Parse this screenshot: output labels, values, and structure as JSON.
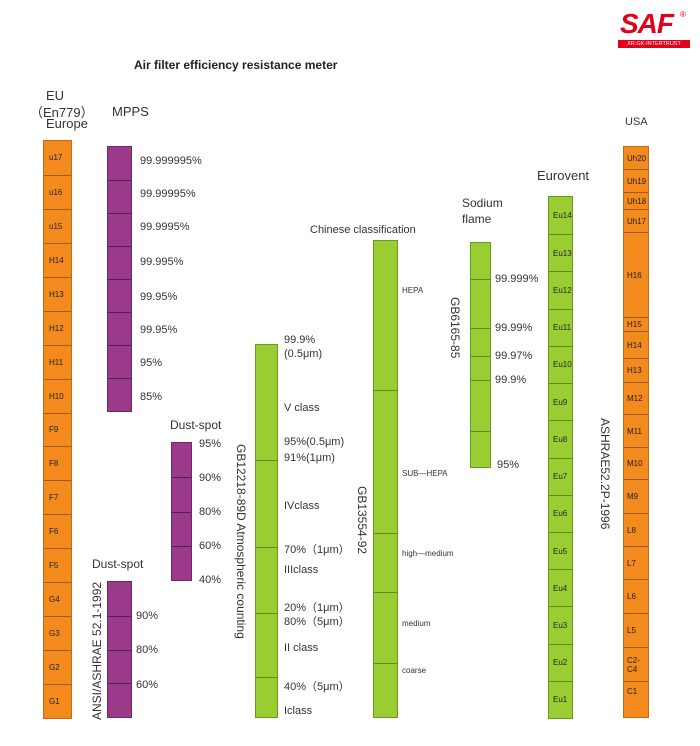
{
  "title": "Air filter efficiency resistance meter",
  "logo": {
    "text": "SAF",
    "tagline": "XR.GK-INTERTRUST",
    "registered": "®",
    "color": "#e3001b"
  },
  "colors": {
    "orange": "#f28a1e",
    "purple": "#9b3a8a",
    "green": "#9acd32"
  },
  "eu": {
    "heading": [
      "EU",
      "（En779）",
      "Europe"
    ],
    "classes": [
      "u17",
      "u16",
      "u15",
      "H14",
      "H13",
      "H12",
      "H11",
      "H10",
      "F9",
      "F8",
      "F7",
      "F6",
      "F5",
      "G4",
      "G3",
      "G2",
      "G1"
    ]
  },
  "mpps": {
    "heading": "MPPS",
    "labels": [
      "99.999995%",
      "99.99995%",
      "99.9995%",
      "99.995%",
      "99.95%",
      "99.95%",
      "95%",
      "85%"
    ]
  },
  "dust_spot_top": {
    "heading": "Dust-spot",
    "labels": [
      "95%",
      "90%",
      "80%",
      "60%",
      "40%"
    ]
  },
  "dust_spot_bottom": {
    "heading": "Dust-spot",
    "vertical_label": "ANSI/ASHRAE 52.1-1992",
    "labels": [
      "90%",
      "80%",
      "60%"
    ]
  },
  "gb12218": {
    "vertical_label": "GB12218-89D   Atmospheric counting",
    "labels": [
      "99.9%",
      "(0.5μm)",
      "V class",
      "95%(0.5μm)",
      "91%(1μm)",
      "IVclass",
      "70%（1μm）",
      "IIIclass",
      "20%（1μm）",
      "80%（5μm）",
      "II class",
      "40%（5μm）",
      "Iclass"
    ]
  },
  "chinese": {
    "heading": "Chinese classification",
    "vertical_label": "GB13554-92",
    "labels": [
      "HEPA",
      "SUB—HEPA",
      "high—medium",
      "medium",
      "coarse"
    ]
  },
  "sodium": {
    "heading": [
      "Sodium",
      "flame"
    ],
    "vertical_label": "GB6165-85",
    "labels": [
      "99.999%",
      "99.99%",
      "99.97%",
      "99.9%",
      "95%"
    ]
  },
  "eurovent": {
    "heading": "Eurovent",
    "classes": [
      "Eu14",
      "Eu13",
      "Eu12",
      "Eu11",
      "Eu10",
      "Eu9",
      "Eu8",
      "Eu7",
      "Eu6",
      "Eu5",
      "Eu4",
      "Eu3",
      "Eu2",
      "Eu1"
    ]
  },
  "usa": {
    "heading": "USA",
    "vertical_label": "ASHRAE52.2P-1996",
    "classes": [
      "Uh20",
      "Uh19",
      "Uh18",
      "Uh17",
      "H16",
      "H15",
      "H14",
      "H13",
      "M12",
      "M11",
      "M10",
      "M9",
      "L8",
      "L7",
      "L6",
      "L5",
      "C2-C4",
      "C1"
    ]
  }
}
